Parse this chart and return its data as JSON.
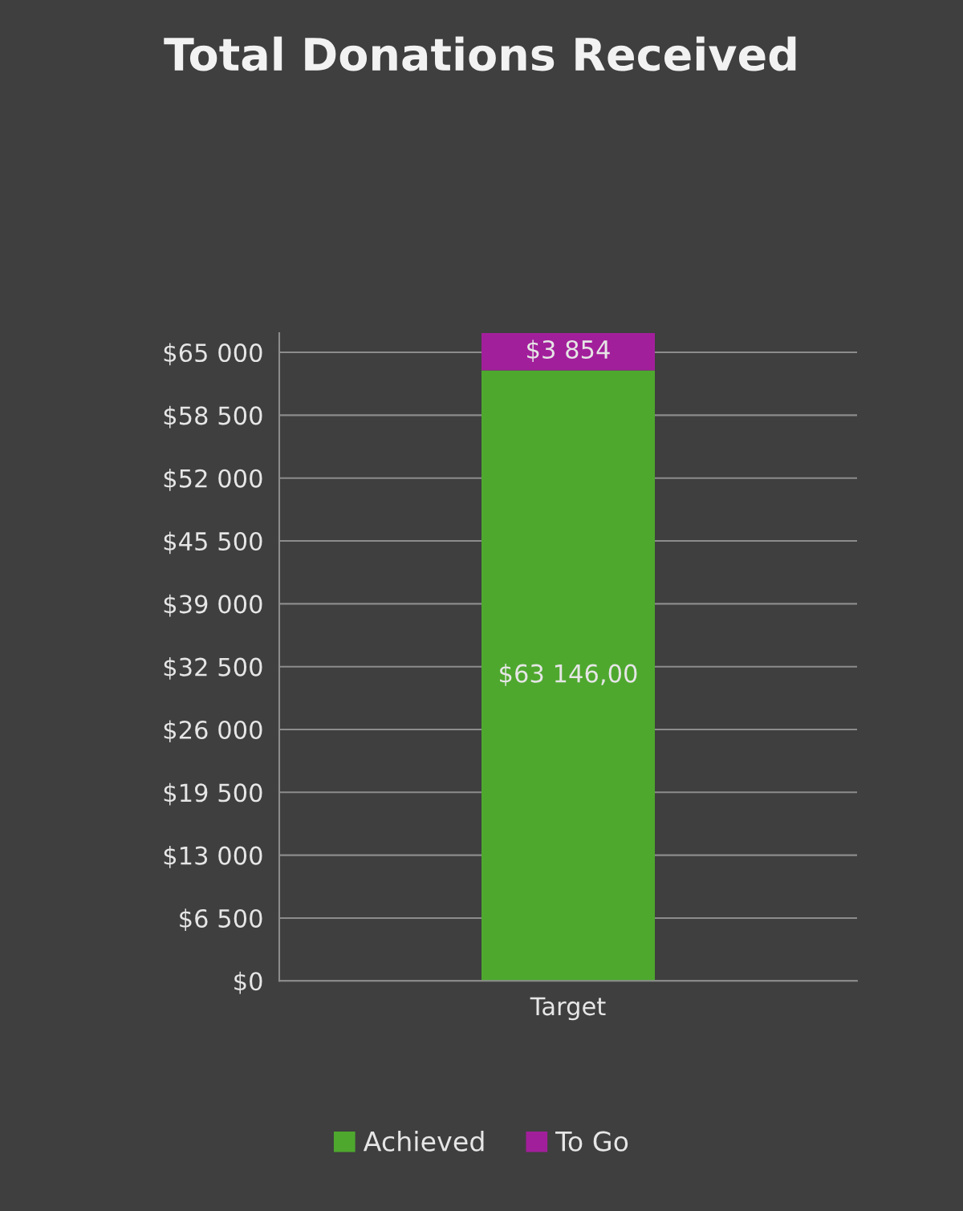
{
  "chart_data": {
    "type": "bar",
    "title": "Total Donations Received",
    "stacked": true,
    "categories": [
      "Target"
    ],
    "series": [
      {
        "name": "Achieved",
        "color": "#4ea82e",
        "values": [
          63146
        ],
        "value_labels": [
          "$63 146,00"
        ]
      },
      {
        "name": "To Go",
        "color": "#a21f9b",
        "values": [
          3854
        ],
        "value_labels": [
          "$3 854"
        ]
      }
    ],
    "ylim": [
      0,
      67000
    ],
    "yticks": [
      {
        "value": 0,
        "label": "$0"
      },
      {
        "value": 6500,
        "label": "$6 500"
      },
      {
        "value": 13000,
        "label": "$13 000"
      },
      {
        "value": 19500,
        "label": "$19 500"
      },
      {
        "value": 26000,
        "label": "$26 000"
      },
      {
        "value": 32500,
        "label": "$32 500"
      },
      {
        "value": 39000,
        "label": "$39 000"
      },
      {
        "value": 45500,
        "label": "$45 500"
      },
      {
        "value": 52000,
        "label": "$52 000"
      },
      {
        "value": 58500,
        "label": "$58 500"
      },
      {
        "value": 65000,
        "label": "$65 000"
      }
    ],
    "grid": "y",
    "legend": "bottom"
  }
}
